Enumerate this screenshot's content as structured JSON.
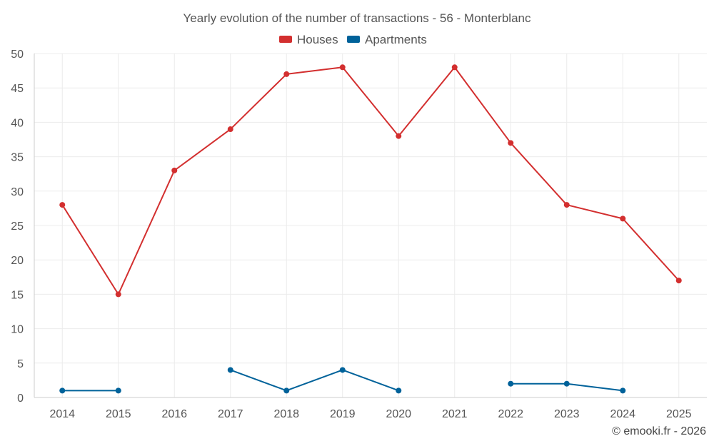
{
  "chart_data": {
    "type": "line",
    "title": "Yearly evolution of the number of transactions - 56 - Monterblanc",
    "categories": [
      "2014",
      "2015",
      "2016",
      "2017",
      "2018",
      "2019",
      "2020",
      "2021",
      "2022",
      "2023",
      "2024",
      "2025"
    ],
    "series": [
      {
        "name": "Houses",
        "color": "#d32f2f",
        "values": [
          28,
          15,
          33,
          39,
          47,
          48,
          38,
          48,
          37,
          28,
          26,
          17
        ]
      },
      {
        "name": "Apartments",
        "color": "#00629a",
        "values": [
          1,
          1,
          null,
          4,
          1,
          4,
          1,
          null,
          2,
          2,
          1,
          null
        ]
      }
    ],
    "ylim": [
      0,
      50
    ],
    "yticks": [
      0,
      5,
      10,
      15,
      20,
      25,
      30,
      35,
      40,
      45,
      50
    ],
    "grid": true,
    "legend_position": "top-center"
  },
  "credit": "© emooki.fr - 2026"
}
